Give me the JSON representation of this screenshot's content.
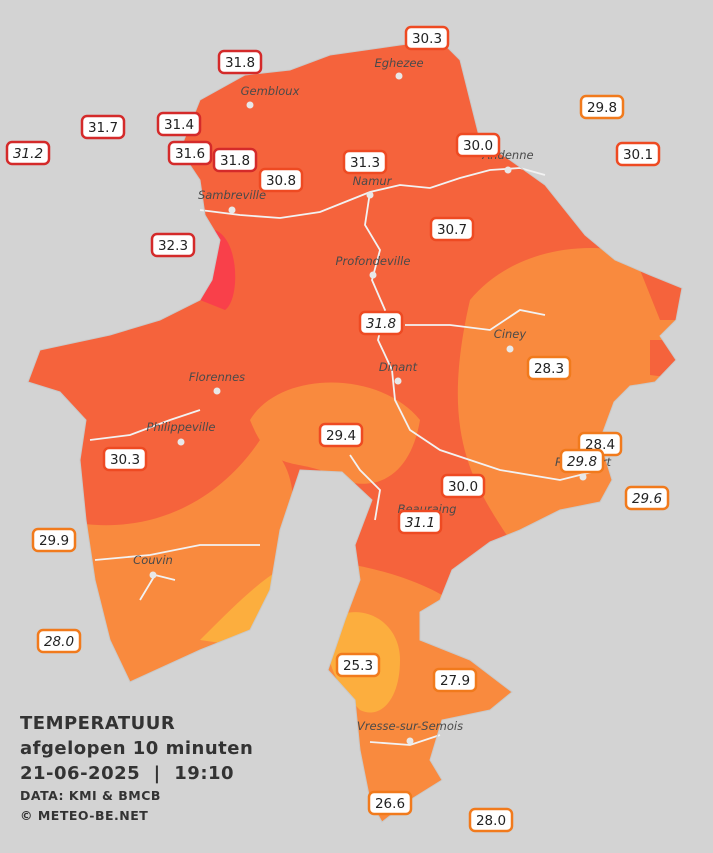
{
  "map": {
    "cities": [
      "Eghezee",
      "Gembloux",
      "Andenne",
      "Namur",
      "Sambreville",
      "Profondeville",
      "Ciney",
      "Dinant",
      "Florennes",
      "Philippeville",
      "Rochefort",
      "Beauraing",
      "Couvin",
      "Vresse-sur-Semois"
    ],
    "temperatures": [
      "30.3",
      "31.8",
      "29.8",
      "31.7",
      "31.4",
      "30.0",
      "31.2",
      "31.6",
      "31.8",
      "31.3",
      "30.1",
      "30.8",
      "30.7",
      "32.3",
      "31.8",
      "28.3",
      "29.4",
      "28.4",
      "29.8",
      "30.3",
      "30.0",
      "29.6",
      "31.1",
      "29.9",
      "28.0",
      "25.3",
      "27.9",
      "26.6",
      "28.0"
    ]
  },
  "legend": {
    "title": "TEMPERATUUR",
    "subtitle": "afgelopen 10 minuten",
    "datetime": "21-06-2025  |  19:10",
    "source": "DATA: KMI & BMCB",
    "copyright": "© METEO-BE.NET"
  }
}
